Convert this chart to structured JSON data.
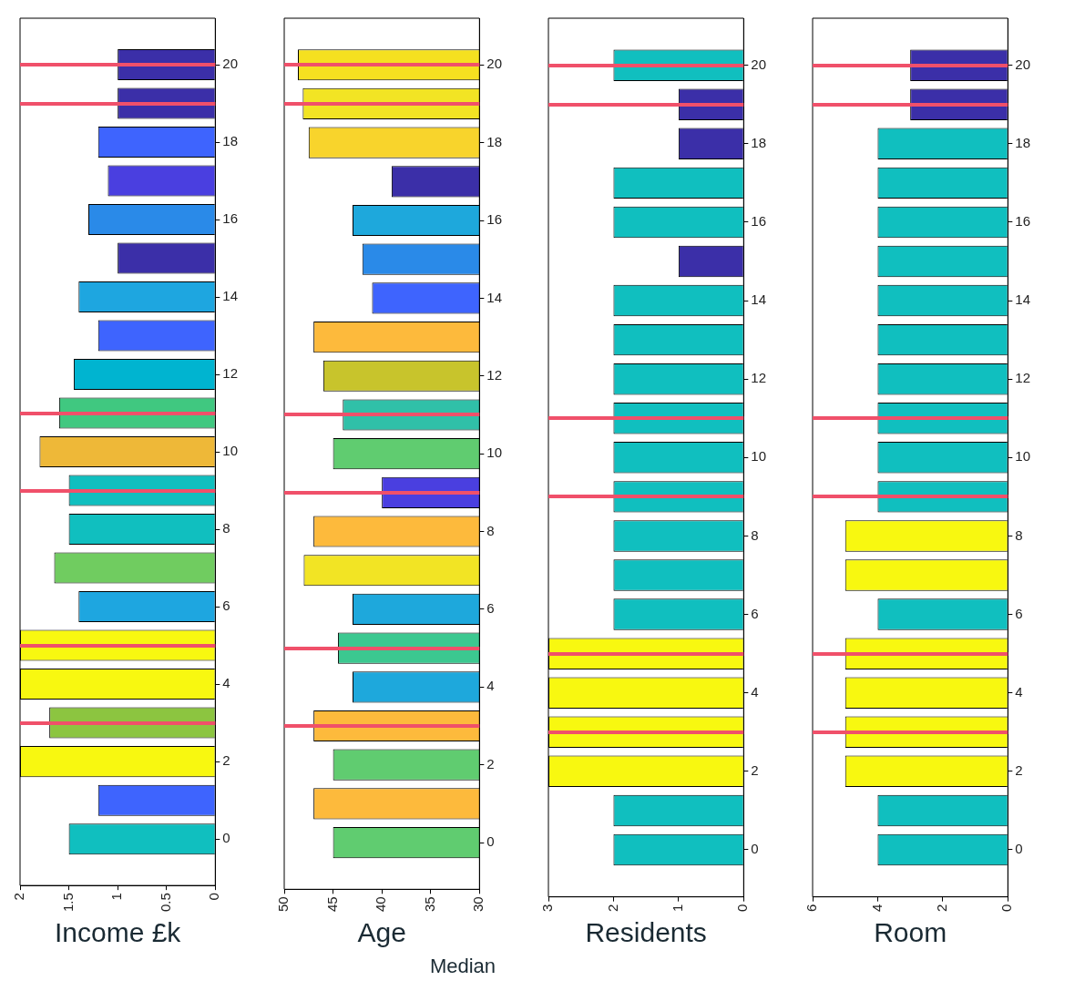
{
  "chart_data": [
    {
      "type": "bar",
      "orientation": "horizontal",
      "xlabel": "Income £k",
      "x": [
        20,
        19,
        18,
        17,
        16,
        15,
        14,
        13,
        12,
        11,
        10,
        9,
        8,
        7,
        6,
        5,
        4,
        3,
        2,
        1,
        0
      ],
      "values": [
        1.0,
        1.0,
        1.2,
        1.1,
        1.3,
        1.0,
        1.4,
        1.2,
        1.45,
        1.6,
        1.8,
        1.5,
        1.5,
        1.65,
        1.4,
        2,
        2,
        1.7,
        2,
        1.2,
        1.5
      ],
      "colors": [
        "#3b2fa8",
        "#3b2fa8",
        "#3e64fe",
        "#4a3fe0",
        "#2a8ae8",
        "#3b2fa8",
        "#1ea6e0",
        "#3e64fe",
        "#00b4d0",
        "#40c880",
        "#eeb838",
        "#10bfbf",
        "#10bfbf",
        "#70cc60",
        "#1ea6e0",
        "#f8f810",
        "#f8f810",
        "#8cc540",
        "#f8f810",
        "#3e64fe",
        "#10bfbf"
      ],
      "xlim": [
        2,
        0
      ],
      "xticks": [
        2,
        1.5,
        1,
        0.5,
        0
      ],
      "ylim": [
        -1.2,
        21.2
      ],
      "yticks": [
        0,
        2,
        4,
        6,
        8,
        10,
        12,
        14,
        16,
        18,
        20
      ],
      "ref_lines": [
        {
          "axis": "y",
          "value": 20,
          "color": "#f0506a"
        },
        {
          "axis": "y",
          "value": 19,
          "color": "#f0506a"
        },
        {
          "axis": "y",
          "value": 11,
          "color": "#f0506a"
        },
        {
          "axis": "y",
          "value": 9,
          "color": "#f0506a"
        },
        {
          "axis": "y",
          "value": 5,
          "color": "#f0506a"
        },
        {
          "axis": "y",
          "value": 3,
          "color": "#f0506a"
        }
      ]
    },
    {
      "type": "bar",
      "orientation": "horizontal",
      "xlabel": "Age",
      "annotations": [
        "Median"
      ],
      "x": [
        20,
        19,
        18,
        17,
        16,
        15,
        14,
        13,
        12,
        11,
        10,
        9,
        8,
        7,
        6,
        5,
        4,
        3,
        2,
        1,
        0
      ],
      "values": [
        48.6,
        48.1,
        47.5,
        39,
        43,
        42,
        41,
        47,
        46,
        44,
        45,
        40,
        47,
        48,
        43,
        44.5,
        43,
        47,
        45,
        47,
        45
      ],
      "colors": [
        "#f5e020",
        "#f2e424",
        "#f8d42c",
        "#3b2fa8",
        "#1ea8dc",
        "#2a8ae8",
        "#3e64fe",
        "#fdba3c",
        "#c8c42c",
        "#30c0a8",
        "#60cc70",
        "#4a3fe0",
        "#fdba3c",
        "#f2e424",
        "#1ea8dc",
        "#3cc890",
        "#1ea8dc",
        "#fdba3c",
        "#60cc70",
        "#fdba3c",
        "#60cc70"
      ],
      "xlim": [
        50,
        30
      ],
      "xticks": [
        50,
        45,
        40,
        35,
        30
      ],
      "ylim": [
        -1.2,
        21.2
      ],
      "yticks": [
        0,
        2,
        4,
        6,
        8,
        10,
        12,
        14,
        16,
        18,
        20
      ],
      "ref_lines": [
        {
          "axis": "y",
          "value": 20,
          "color": "#f0506a"
        },
        {
          "axis": "y",
          "value": 19,
          "color": "#f0506a"
        },
        {
          "axis": "y",
          "value": 11,
          "color": "#f0506a"
        },
        {
          "axis": "y",
          "value": 9,
          "color": "#f0506a"
        },
        {
          "axis": "y",
          "value": 5,
          "color": "#f0506a"
        },
        {
          "axis": "y",
          "value": 3,
          "color": "#f0506a"
        }
      ]
    },
    {
      "type": "bar",
      "orientation": "horizontal",
      "xlabel": "Residents",
      "x": [
        20,
        19,
        18,
        17,
        16,
        15,
        14,
        13,
        12,
        11,
        10,
        9,
        8,
        7,
        6,
        5,
        4,
        3,
        2,
        1,
        0
      ],
      "values": [
        2,
        1,
        1,
        2,
        2,
        1,
        2,
        2,
        2,
        2,
        2,
        2,
        2,
        2,
        2,
        3,
        3,
        3,
        3,
        2,
        2
      ],
      "colors": [
        "#10bfbf",
        "#3b2fa8",
        "#3b2fa8",
        "#10bfbf",
        "#10bfbf",
        "#3b2fa8",
        "#10bfbf",
        "#10bfbf",
        "#10bfbf",
        "#10bfbf",
        "#10bfbf",
        "#10bfbf",
        "#10bfbf",
        "#10bfbf",
        "#10bfbf",
        "#f8f810",
        "#f8f810",
        "#f8f810",
        "#f8f810",
        "#10bfbf",
        "#10bfbf"
      ],
      "xlim": [
        3,
        0
      ],
      "xticks": [
        3,
        2,
        1,
        0
      ],
      "ylim": [
        -1.2,
        21.2
      ],
      "yticks": [
        0,
        2,
        4,
        6,
        8,
        10,
        12,
        14,
        16,
        18,
        20
      ],
      "ref_lines": [
        {
          "axis": "y",
          "value": 20,
          "color": "#f0506a"
        },
        {
          "axis": "y",
          "value": 19,
          "color": "#f0506a"
        },
        {
          "axis": "y",
          "value": 11,
          "color": "#f0506a"
        },
        {
          "axis": "y",
          "value": 9,
          "color": "#f0506a"
        },
        {
          "axis": "y",
          "value": 5,
          "color": "#f0506a"
        },
        {
          "axis": "y",
          "value": 3,
          "color": "#f0506a"
        }
      ]
    },
    {
      "type": "bar",
      "orientation": "horizontal",
      "xlabel": "Room",
      "x": [
        20,
        19,
        18,
        17,
        16,
        15,
        14,
        13,
        12,
        11,
        10,
        9,
        8,
        7,
        6,
        5,
        4,
        3,
        2,
        1,
        0
      ],
      "values": [
        3,
        3,
        4,
        4,
        4,
        4,
        4,
        4,
        4,
        4,
        4,
        4,
        5,
        5,
        4,
        5,
        5,
        5,
        5,
        4,
        4
      ],
      "colors": [
        "#3b2fa8",
        "#3b2fa8",
        "#10bfbf",
        "#10bfbf",
        "#10bfbf",
        "#10bfbf",
        "#10bfbf",
        "#10bfbf",
        "#10bfbf",
        "#10bfbf",
        "#10bfbf",
        "#10bfbf",
        "#f8f810",
        "#f8f810",
        "#10bfbf",
        "#f8f810",
        "#f8f810",
        "#f8f810",
        "#f8f810",
        "#10bfbf",
        "#10bfbf"
      ],
      "xlim": [
        6,
        0
      ],
      "xticks": [
        6,
        4,
        2,
        0
      ],
      "ylim": [
        -1.2,
        21.2
      ],
      "yticks": [
        0,
        2,
        4,
        6,
        8,
        10,
        12,
        14,
        16,
        18,
        20
      ],
      "ref_lines": [
        {
          "axis": "y",
          "value": 20,
          "color": "#f0506a"
        },
        {
          "axis": "y",
          "value": 19,
          "color": "#f0506a"
        },
        {
          "axis": "y",
          "value": 11,
          "color": "#f0506a"
        },
        {
          "axis": "y",
          "value": 9,
          "color": "#f0506a"
        },
        {
          "axis": "y",
          "value": 5,
          "color": "#f0506a"
        },
        {
          "axis": "y",
          "value": 3,
          "color": "#f0506a"
        }
      ]
    }
  ]
}
